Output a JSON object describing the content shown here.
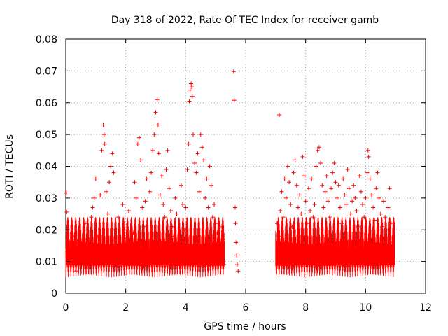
{
  "chart_data": {
    "type": "scatter",
    "title": "Day 318 of 2022, Rate Of TEC Index for receiver gamb",
    "xlabel": "GPS time / hours",
    "ylabel": "ROTI / TECUs",
    "xlim": [
      0,
      12
    ],
    "ylim": [
      0,
      0.08
    ],
    "xticks": [
      0,
      2,
      4,
      6,
      8,
      10,
      12
    ],
    "yticks": [
      0,
      0.01,
      0.02,
      0.03,
      0.04,
      0.05,
      0.06,
      0.07,
      0.08
    ],
    "grid": true,
    "marker": "+",
    "series": [
      {
        "name": "ROTI",
        "color": "#ff0000",
        "points": [
          [
            0.02,
            0.0316
          ],
          [
            0.03,
            0.0256
          ],
          [
            0.05,
            0.013
          ],
          [
            0.1,
            0.016
          ],
          [
            0.15,
            0.009
          ],
          [
            0.2,
            0.012
          ],
          [
            0.25,
            0.018
          ],
          [
            0.3,
            0.011
          ],
          [
            0.35,
            0.007
          ],
          [
            0.4,
            0.014
          ],
          [
            0.45,
            0.02
          ],
          [
            0.5,
            0.015
          ],
          [
            0.55,
            0.01
          ],
          [
            0.6,
            0.012
          ],
          [
            0.65,
            0.022
          ],
          [
            0.7,
            0.017
          ],
          [
            0.75,
            0.009
          ],
          [
            0.8,
            0.013
          ],
          [
            0.85,
            0.024
          ],
          [
            0.9,
            0.027
          ],
          [
            0.95,
            0.03
          ],
          [
            1.0,
            0.036
          ],
          [
            1.05,
            0.018
          ],
          [
            1.1,
            0.012
          ],
          [
            1.15,
            0.031
          ],
          [
            1.2,
            0.045
          ],
          [
            1.25,
            0.053
          ],
          [
            1.28,
            0.05
          ],
          [
            1.3,
            0.047
          ],
          [
            1.35,
            0.032
          ],
          [
            1.4,
            0.025
          ],
          [
            1.45,
            0.035
          ],
          [
            1.5,
            0.04
          ],
          [
            1.55,
            0.044
          ],
          [
            1.6,
            0.038
          ],
          [
            1.65,
            0.02
          ],
          [
            1.7,
            0.013
          ],
          [
            1.75,
            0.024
          ],
          [
            1.8,
            0.015
          ],
          [
            1.85,
            0.011
          ],
          [
            1.9,
            0.028
          ],
          [
            1.95,
            0.02
          ],
          [
            2.0,
            0.012
          ],
          [
            2.05,
            0.016
          ],
          [
            2.1,
            0.026
          ],
          [
            2.15,
            0.014
          ],
          [
            2.2,
            0.009
          ],
          [
            2.25,
            0.019
          ],
          [
            2.3,
            0.035
          ],
          [
            2.35,
            0.03
          ],
          [
            2.4,
            0.047
          ],
          [
            2.45,
            0.049
          ],
          [
            2.5,
            0.042
          ],
          [
            2.55,
            0.027
          ],
          [
            2.6,
            0.021
          ],
          [
            2.65,
            0.029
          ],
          [
            2.7,
            0.036
          ],
          [
            2.75,
            0.017
          ],
          [
            2.8,
            0.032
          ],
          [
            2.85,
            0.038
          ],
          [
            2.9,
            0.045
          ],
          [
            2.95,
            0.05
          ],
          [
            3.0,
            0.057
          ],
          [
            3.05,
            0.061
          ],
          [
            3.08,
            0.053
          ],
          [
            3.1,
            0.044
          ],
          [
            3.15,
            0.031
          ],
          [
            3.2,
            0.037
          ],
          [
            3.25,
            0.028
          ],
          [
            3.3,
            0.024
          ],
          [
            3.35,
            0.039
          ],
          [
            3.4,
            0.045
          ],
          [
            3.45,
            0.033
          ],
          [
            3.5,
            0.026
          ],
          [
            3.55,
            0.021
          ],
          [
            3.6,
            0.018
          ],
          [
            3.65,
            0.03
          ],
          [
            3.7,
            0.025
          ],
          [
            3.75,
            0.016
          ],
          [
            3.8,
            0.012
          ],
          [
            3.85,
            0.034
          ],
          [
            3.9,
            0.028
          ],
          [
            3.95,
            0.02
          ],
          [
            4.0,
            0.027
          ],
          [
            4.05,
            0.039
          ],
          [
            4.1,
            0.047
          ],
          [
            4.12,
            0.0605
          ],
          [
            4.15,
            0.064
          ],
          [
            4.18,
            0.066
          ],
          [
            4.2,
            0.065
          ],
          [
            4.22,
            0.062
          ],
          [
            4.25,
            0.05
          ],
          [
            4.3,
            0.041
          ],
          [
            4.35,
            0.038
          ],
          [
            4.4,
            0.044
          ],
          [
            4.45,
            0.032
          ],
          [
            4.5,
            0.05
          ],
          [
            4.55,
            0.046
          ],
          [
            4.6,
            0.042
          ],
          [
            4.65,
            0.03
          ],
          [
            4.7,
            0.036
          ],
          [
            4.75,
            0.027
          ],
          [
            4.8,
            0.04
          ],
          [
            4.85,
            0.034
          ],
          [
            4.9,
            0.024
          ],
          [
            4.95,
            0.028
          ],
          [
            5.0,
            0.022
          ],
          [
            5.05,
            0.019
          ],
          [
            5.1,
            0.015
          ],
          [
            5.15,
            0.021
          ],
          [
            5.2,
            0.013
          ],
          [
            5.25,
            0.017
          ],
          [
            5.28,
            0.009
          ],
          [
            5.6,
            0.0698
          ],
          [
            5.62,
            0.0608
          ],
          [
            5.65,
            0.027
          ],
          [
            5.66,
            0.022
          ],
          [
            5.68,
            0.016
          ],
          [
            5.7,
            0.012
          ],
          [
            5.72,
            0.009
          ],
          [
            5.75,
            0.007
          ],
          [
            7.05,
            0.022
          ],
          [
            7.1,
            0.018
          ],
          [
            7.12,
            0.0562
          ],
          [
            7.15,
            0.026
          ],
          [
            7.2,
            0.032
          ],
          [
            7.25,
            0.024
          ],
          [
            7.3,
            0.036
          ],
          [
            7.35,
            0.03
          ],
          [
            7.4,
            0.04
          ],
          [
            7.45,
            0.035
          ],
          [
            7.5,
            0.028
          ],
          [
            7.55,
            0.021
          ],
          [
            7.6,
            0.038
          ],
          [
            7.65,
            0.042
          ],
          [
            7.7,
            0.034
          ],
          [
            7.75,
            0.027
          ],
          [
            7.8,
            0.031
          ],
          [
            7.85,
            0.025
          ],
          [
            7.9,
            0.043
          ],
          [
            7.95,
            0.037
          ],
          [
            8.0,
            0.029
          ],
          [
            8.05,
            0.022
          ],
          [
            8.1,
            0.033
          ],
          [
            8.15,
            0.026
          ],
          [
            8.2,
            0.036
          ],
          [
            8.25,
            0.024
          ],
          [
            8.3,
            0.028
          ],
          [
            8.35,
            0.04
          ],
          [
            8.4,
            0.045
          ],
          [
            8.45,
            0.046
          ],
          [
            8.5,
            0.041
          ],
          [
            8.55,
            0.034
          ],
          [
            8.6,
            0.027
          ],
          [
            8.65,
            0.032
          ],
          [
            8.7,
            0.037
          ],
          [
            8.75,
            0.029
          ],
          [
            8.8,
            0.024
          ],
          [
            8.85,
            0.033
          ],
          [
            8.9,
            0.038
          ],
          [
            8.95,
            0.041
          ],
          [
            9.0,
            0.035
          ],
          [
            9.05,
            0.03
          ],
          [
            9.1,
            0.034
          ],
          [
            9.15,
            0.027
          ],
          [
            9.2,
            0.022
          ],
          [
            9.25,
            0.036
          ],
          [
            9.3,
            0.031
          ],
          [
            9.35,
            0.028
          ],
          [
            9.4,
            0.039
          ],
          [
            9.45,
            0.033
          ],
          [
            9.5,
            0.025
          ],
          [
            9.55,
            0.029
          ],
          [
            9.6,
            0.034
          ],
          [
            9.65,
            0.03
          ],
          [
            9.7,
            0.026
          ],
          [
            9.75,
            0.021
          ],
          [
            9.8,
            0.037
          ],
          [
            9.85,
            0.032
          ],
          [
            9.9,
            0.028
          ],
          [
            9.95,
            0.024
          ],
          [
            10.0,
            0.03
          ],
          [
            10.05,
            0.038
          ],
          [
            10.08,
            0.045
          ],
          [
            10.1,
            0.043
          ],
          [
            10.15,
            0.036
          ],
          [
            10.2,
            0.031
          ],
          [
            10.25,
            0.027
          ],
          [
            10.3,
            0.023
          ],
          [
            10.35,
            0.033
          ],
          [
            10.4,
            0.038
          ],
          [
            10.45,
            0.03
          ],
          [
            10.5,
            0.025
          ],
          [
            10.55,
            0.021
          ],
          [
            10.6,
            0.029
          ],
          [
            10.65,
            0.024
          ],
          [
            10.7,
            0.02
          ],
          [
            10.75,
            0.027
          ],
          [
            10.8,
            0.033
          ],
          [
            10.85,
            0.022
          ],
          [
            10.9,
            0.016
          ],
          [
            10.93,
            0.009
          ]
        ]
      }
    ]
  }
}
